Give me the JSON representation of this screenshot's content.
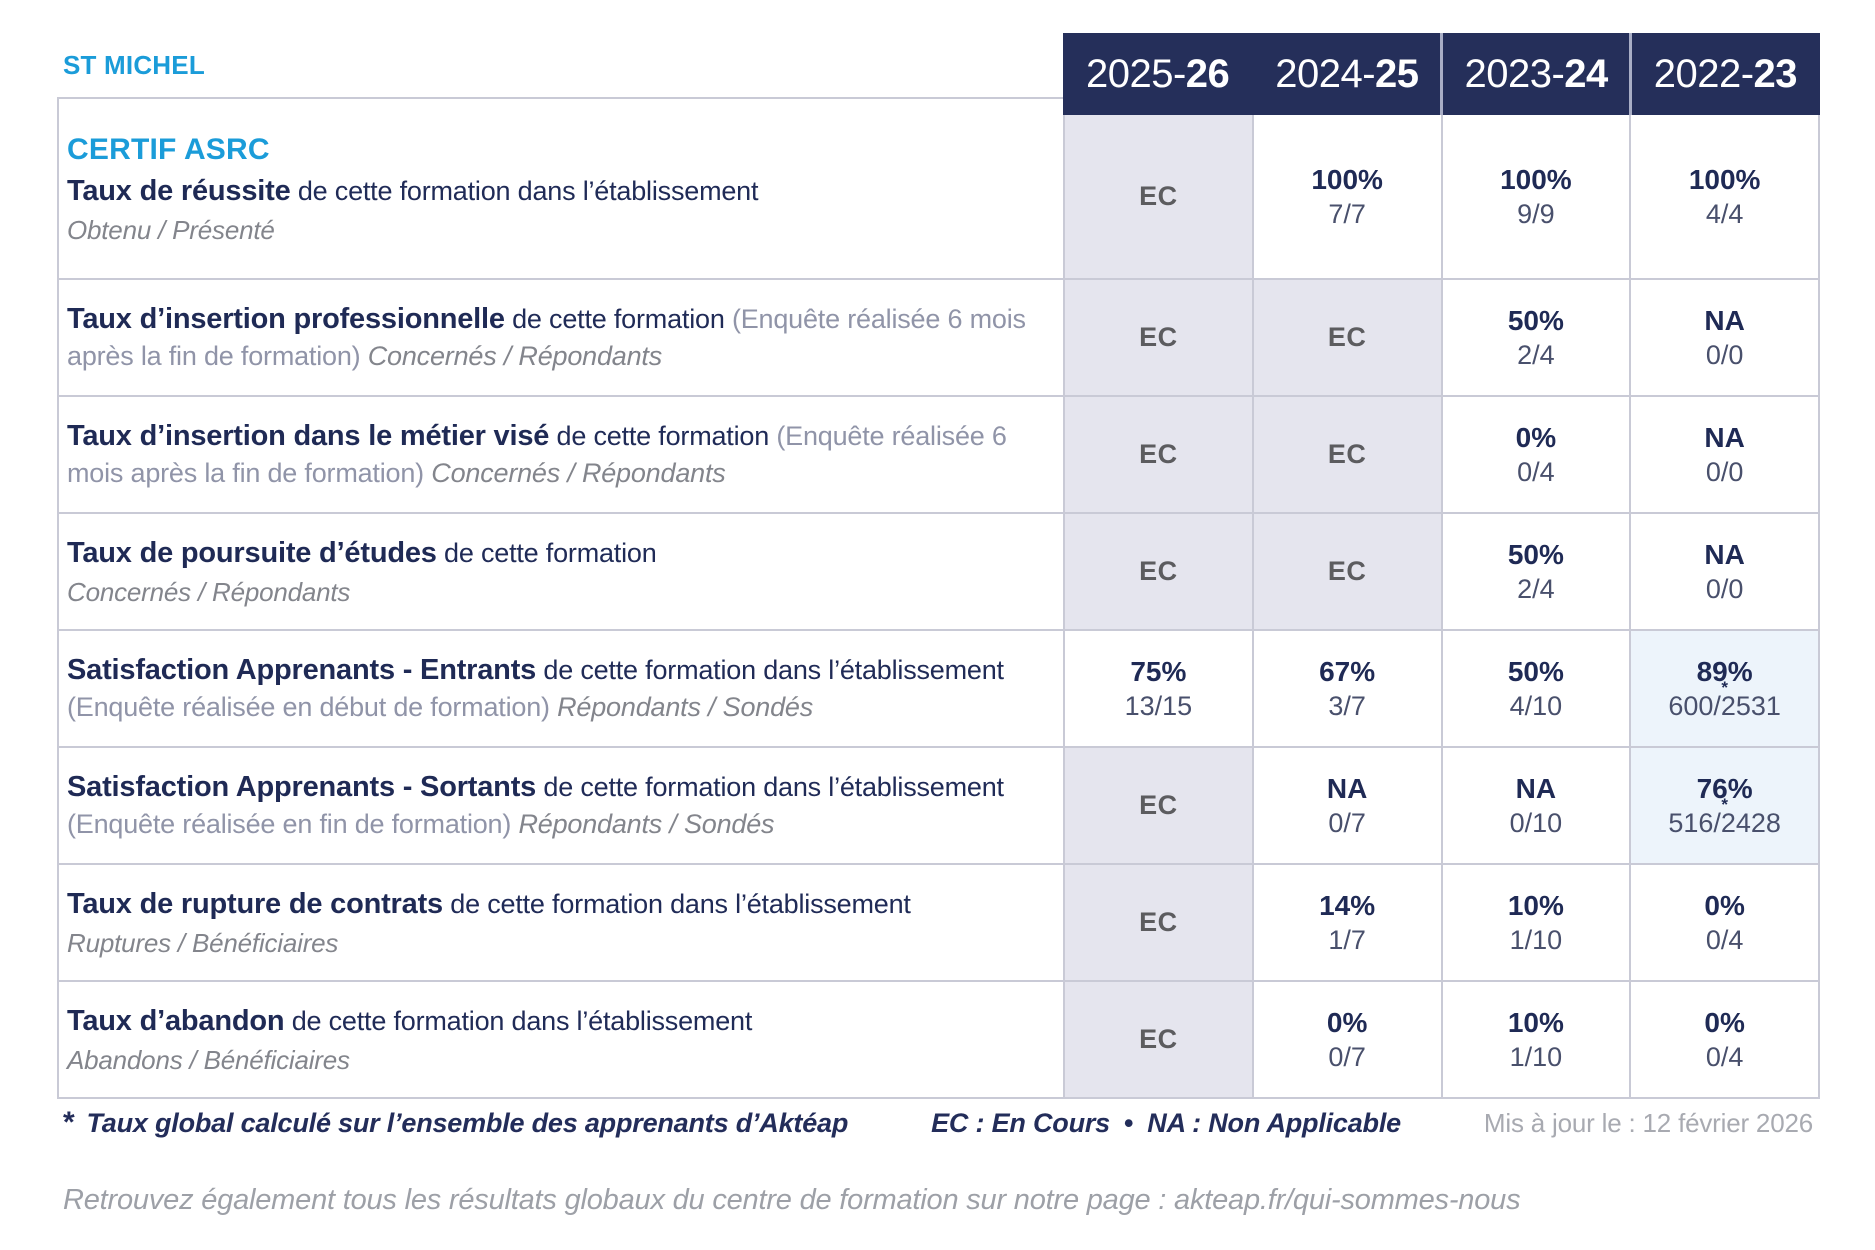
{
  "org": "ST MICHEL",
  "program": "CERTIF ASRC",
  "years": [
    {
      "prefix": "2025-",
      "suffix": "26"
    },
    {
      "prefix": "2024-",
      "suffix": "25"
    },
    {
      "prefix": "2023-",
      "suffix": "24"
    },
    {
      "prefix": "2022-",
      "suffix": "23"
    }
  ],
  "rows": [
    {
      "title": "Taux de réussite",
      "desc": " de cette formation dans l’établissement",
      "paren": "",
      "subtitle_inline": "",
      "subtitle_block": "Obtenu / Présenté",
      "cells": [
        {
          "main": "EC",
          "sub": ""
        },
        {
          "main": "100%",
          "sub": "7/7"
        },
        {
          "main": "100%",
          "sub": "9/9"
        },
        {
          "main": "100%",
          "sub": "4/4"
        }
      ]
    },
    {
      "title": "Taux d’insertion professionnelle",
      "desc": " de cette formation ",
      "paren": "(Enquête réalisée 6 mois après la fin de formation) ",
      "subtitle_inline": "Concernés / Répondants",
      "subtitle_block": "",
      "cells": [
        {
          "main": "EC",
          "sub": ""
        },
        {
          "main": "EC",
          "sub": ""
        },
        {
          "main": "50%",
          "sub": "2/4"
        },
        {
          "main": "NA",
          "sub": "0/0"
        }
      ]
    },
    {
      "title": "Taux d’insertion dans le métier visé",
      "desc": " de cette formation ",
      "paren": "(Enquête réalisée 6 mois après la fin de formation) ",
      "subtitle_inline": "Concernés / Répondants",
      "subtitle_block": "",
      "cells": [
        {
          "main": "EC",
          "sub": ""
        },
        {
          "main": "EC",
          "sub": ""
        },
        {
          "main": "0%",
          "sub": "0/4"
        },
        {
          "main": "NA",
          "sub": "0/0"
        }
      ]
    },
    {
      "title": "Taux de poursuite d’études",
      "desc": " de cette formation",
      "paren": "",
      "subtitle_inline": "",
      "subtitle_block": "Concernés / Répondants",
      "cells": [
        {
          "main": "EC",
          "sub": ""
        },
        {
          "main": "EC",
          "sub": ""
        },
        {
          "main": "50%",
          "sub": "2/4"
        },
        {
          "main": "NA",
          "sub": "0/0"
        }
      ]
    },
    {
      "title": "Satisfaction Apprenants - Entrants",
      "desc": " de cette formation dans l’établissement ",
      "paren": "(Enquête réalisée en début de formation) ",
      "subtitle_inline": "Répondants / Sondés",
      "subtitle_block": "",
      "cells": [
        {
          "main": "75%",
          "sub": "13/15"
        },
        {
          "main": "67%",
          "sub": "3/7"
        },
        {
          "main": "50%",
          "sub": "4/10"
        },
        {
          "main": "89%",
          "star": "*",
          "sub": "600/2531"
        }
      ]
    },
    {
      "title": "Satisfaction Apprenants - Sortants",
      "desc": " de cette formation dans l’établissement ",
      "paren": "(Enquête réalisée en fin de formation) ",
      "subtitle_inline": "Répondants / Sondés",
      "subtitle_block": "",
      "cells": [
        {
          "main": "EC",
          "sub": ""
        },
        {
          "main": "NA",
          "sub": "0/7"
        },
        {
          "main": "NA",
          "sub": "0/10"
        },
        {
          "main": "76%",
          "star": "*",
          "sub": "516/2428"
        }
      ]
    },
    {
      "title": "Taux de rupture de contrats",
      "desc": " de cette formation dans l’établissement",
      "paren": "",
      "subtitle_inline": "",
      "subtitle_block": "Ruptures / Bénéficiaires",
      "cells": [
        {
          "main": "EC",
          "sub": ""
        },
        {
          "main": "14%",
          "sub": "1/7"
        },
        {
          "main": "10%",
          "sub": "1/10"
        },
        {
          "main": "0%",
          "sub": "0/4"
        }
      ]
    },
    {
      "title": "Taux d’abandon",
      "desc": " de cette formation dans l’établissement",
      "paren": "",
      "subtitle_inline": "",
      "subtitle_block": "Abandons / Bénéficiaires",
      "cells": [
        {
          "main": "EC",
          "sub": ""
        },
        {
          "main": "0%",
          "sub": "0/7"
        },
        {
          "main": "10%",
          "sub": "1/10"
        },
        {
          "main": "0%",
          "sub": "0/4"
        }
      ]
    }
  ],
  "legend": {
    "asterisk": "*",
    "note": "Taux global calculé sur l’ensemble des apprenants d’Aktéap",
    "ec": "EC : En Cours",
    "separator": "•",
    "na": "NA : Non Applicable",
    "updated": "Mis à jour le : 12 février 2026"
  },
  "footer": "Retrouvez également tous les résultats globaux du centre de formation sur notre page : akteap.fr/qui-sommes-nous",
  "colors": {
    "navy": "#252f5a",
    "cyan": "#1b9cd9",
    "ec_cell_bg": "#e5e5ee",
    "highlight_cell_bg": "#edf4fb",
    "grid_border": "#c9cad6"
  }
}
